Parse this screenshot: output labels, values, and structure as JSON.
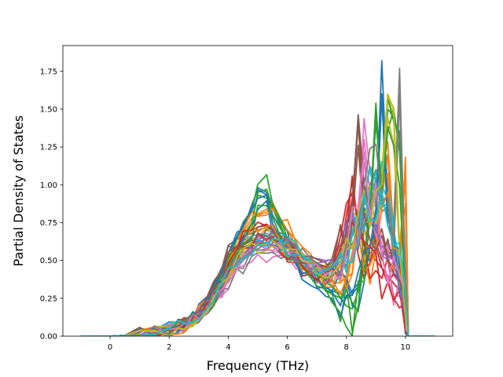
{
  "chart_data": {
    "type": "line",
    "title": "",
    "xlabel": "Frequency (THz)",
    "ylabel": "Partial Density of States",
    "xlim": [
      -1.6,
      11.6
    ],
    "ylim": [
      0.0,
      1.92
    ],
    "xticks": [
      0,
      2,
      4,
      6,
      8,
      10
    ],
    "yticks": [
      0.0,
      0.25,
      0.5,
      0.75,
      1.0,
      1.25,
      1.5,
      1.75
    ],
    "xtick_labels": [
      "0",
      "2",
      "4",
      "6",
      "8",
      "10"
    ],
    "ytick_labels": [
      "0.00",
      "0.25",
      "0.50",
      "0.75",
      "1.00",
      "1.25",
      "1.50",
      "1.75"
    ],
    "grid": false,
    "legend": "none",
    "series_count": 40,
    "colors": [
      "#1f77b4",
      "#ff7f0e",
      "#2ca02c",
      "#d62728",
      "#9467bd",
      "#8c564b",
      "#e377c2",
      "#7f7f7f",
      "#bcbd22",
      "#17becf"
    ],
    "x": [
      -1.0,
      0.0,
      0.5,
      1.0,
      1.5,
      2.0,
      2.3,
      2.5,
      2.8,
      3.0,
      3.3,
      3.5,
      3.8,
      4.0,
      4.3,
      4.5,
      4.8,
      5.0,
      5.3,
      5.5,
      5.8,
      6.0,
      6.3,
      6.5,
      6.8,
      7.0,
      7.3,
      7.5,
      7.8,
      8.0,
      8.2,
      8.4,
      8.6,
      8.8,
      9.0,
      9.2,
      9.4,
      9.6,
      9.8,
      10.0,
      10.1,
      11.0
    ],
    "representative_series": [
      {
        "values": [
          0.0,
          0.0,
          0.005,
          0.012,
          0.025,
          0.045,
          0.07,
          0.09,
          0.13,
          0.17,
          0.24,
          0.3,
          0.42,
          0.55,
          0.65,
          0.72,
          0.85,
          0.98,
          0.95,
          0.8,
          0.7,
          0.65,
          0.5,
          0.45,
          0.42,
          0.38,
          0.32,
          0.3,
          0.28,
          0.25,
          0.3,
          0.35,
          0.45,
          0.6,
          0.8,
          1.82,
          0.9,
          0.6,
          0.4,
          0.2,
          0.0,
          0.0
        ]
      },
      {
        "values": [
          0.0,
          0.0,
          0.004,
          0.01,
          0.022,
          0.04,
          0.065,
          0.08,
          0.12,
          0.16,
          0.22,
          0.28,
          0.38,
          0.5,
          0.6,
          0.68,
          0.78,
          0.8,
          0.82,
          0.86,
          0.74,
          0.7,
          0.6,
          0.55,
          0.5,
          0.45,
          0.4,
          0.36,
          0.35,
          0.4,
          0.55,
          0.7,
          0.6,
          0.5,
          0.7,
          0.9,
          1.2,
          0.6,
          0.5,
          1.12,
          0.0,
          0.0
        ]
      },
      {
        "values": [
          0.0,
          0.0,
          0.004,
          0.01,
          0.021,
          0.042,
          0.06,
          0.08,
          0.12,
          0.15,
          0.2,
          0.26,
          0.36,
          0.46,
          0.58,
          0.66,
          0.75,
          0.95,
          0.97,
          0.85,
          0.7,
          0.62,
          0.55,
          0.48,
          0.42,
          0.38,
          0.3,
          0.28,
          0.25,
          0.2,
          0.18,
          0.3,
          0.55,
          0.8,
          1.54,
          0.9,
          1.5,
          1.45,
          1.3,
          0.4,
          0.0,
          0.0
        ]
      },
      {
        "values": [
          0.0,
          0.0,
          0.005,
          0.011,
          0.024,
          0.044,
          0.066,
          0.085,
          0.12,
          0.16,
          0.23,
          0.29,
          0.4,
          0.52,
          0.6,
          0.65,
          0.7,
          0.72,
          0.74,
          0.7,
          0.66,
          0.62,
          0.56,
          0.5,
          0.46,
          0.44,
          0.42,
          0.45,
          0.55,
          0.8,
          1.02,
          0.7,
          0.6,
          0.55,
          0.5,
          0.45,
          0.4,
          0.35,
          0.3,
          0.2,
          0.0,
          0.0
        ]
      },
      {
        "values": [
          0.0,
          0.0,
          0.004,
          0.01,
          0.02,
          0.04,
          0.06,
          0.08,
          0.11,
          0.14,
          0.2,
          0.25,
          0.33,
          0.42,
          0.48,
          0.52,
          0.56,
          0.6,
          0.62,
          0.64,
          0.6,
          0.58,
          0.54,
          0.5,
          0.46,
          0.44,
          0.45,
          0.5,
          0.55,
          0.62,
          0.68,
          0.72,
          0.8,
          0.75,
          0.7,
          0.6,
          0.55,
          0.5,
          0.45,
          0.3,
          0.0,
          0.0
        ]
      },
      {
        "values": [
          0.0,
          0.0,
          0.005,
          0.012,
          0.026,
          0.046,
          0.07,
          0.09,
          0.14,
          0.18,
          0.26,
          0.34,
          0.46,
          0.6,
          0.64,
          0.66,
          0.68,
          0.7,
          0.72,
          0.7,
          0.68,
          0.64,
          0.6,
          0.55,
          0.5,
          0.48,
          0.46,
          0.5,
          0.6,
          0.75,
          0.85,
          1.42,
          0.9,
          0.8,
          0.7,
          0.6,
          0.5,
          0.45,
          0.4,
          0.3,
          0.0,
          0.0
        ]
      },
      {
        "values": [
          0.0,
          0.0,
          0.004,
          0.009,
          0.02,
          0.038,
          0.058,
          0.075,
          0.1,
          0.13,
          0.18,
          0.22,
          0.3,
          0.38,
          0.45,
          0.5,
          0.55,
          0.6,
          0.58,
          0.56,
          0.55,
          0.54,
          0.52,
          0.5,
          0.46,
          0.44,
          0.42,
          0.45,
          0.5,
          0.6,
          0.7,
          0.85,
          1.3,
          0.95,
          0.85,
          0.6,
          0.5,
          0.4,
          0.35,
          0.2,
          0.0,
          0.0
        ]
      },
      {
        "values": [
          0.0,
          0.0,
          0.004,
          0.01,
          0.022,
          0.04,
          0.06,
          0.078,
          0.11,
          0.14,
          0.2,
          0.24,
          0.32,
          0.4,
          0.46,
          0.5,
          0.56,
          0.6,
          0.62,
          0.6,
          0.58,
          0.56,
          0.52,
          0.5,
          0.48,
          0.46,
          0.44,
          0.46,
          0.52,
          0.6,
          0.7,
          0.8,
          0.9,
          1.0,
          1.1,
          0.9,
          0.8,
          0.7,
          1.77,
          0.3,
          0.0,
          0.0
        ]
      },
      {
        "values": [
          0.0,
          0.0,
          0.004,
          0.01,
          0.022,
          0.042,
          0.062,
          0.08,
          0.11,
          0.15,
          0.2,
          0.26,
          0.34,
          0.44,
          0.52,
          0.58,
          0.62,
          0.66,
          0.68,
          0.66,
          0.64,
          0.62,
          0.58,
          0.54,
          0.5,
          0.47,
          0.45,
          0.48,
          0.54,
          0.62,
          0.7,
          0.8,
          0.9,
          0.95,
          1.0,
          1.1,
          1.6,
          1.5,
          0.6,
          0.3,
          0.0,
          0.0
        ]
      },
      {
        "values": [
          0.0,
          0.0,
          0.004,
          0.01,
          0.021,
          0.04,
          0.06,
          0.078,
          0.11,
          0.14,
          0.2,
          0.25,
          0.34,
          0.44,
          0.5,
          0.55,
          0.6,
          0.64,
          0.66,
          0.64,
          0.62,
          0.6,
          0.56,
          0.52,
          0.48,
          0.45,
          0.42,
          0.44,
          0.5,
          0.58,
          0.66,
          0.74,
          0.82,
          0.9,
          0.96,
          1.0,
          0.9,
          0.7,
          0.5,
          0.3,
          0.0,
          0.0
        ]
      }
    ]
  }
}
